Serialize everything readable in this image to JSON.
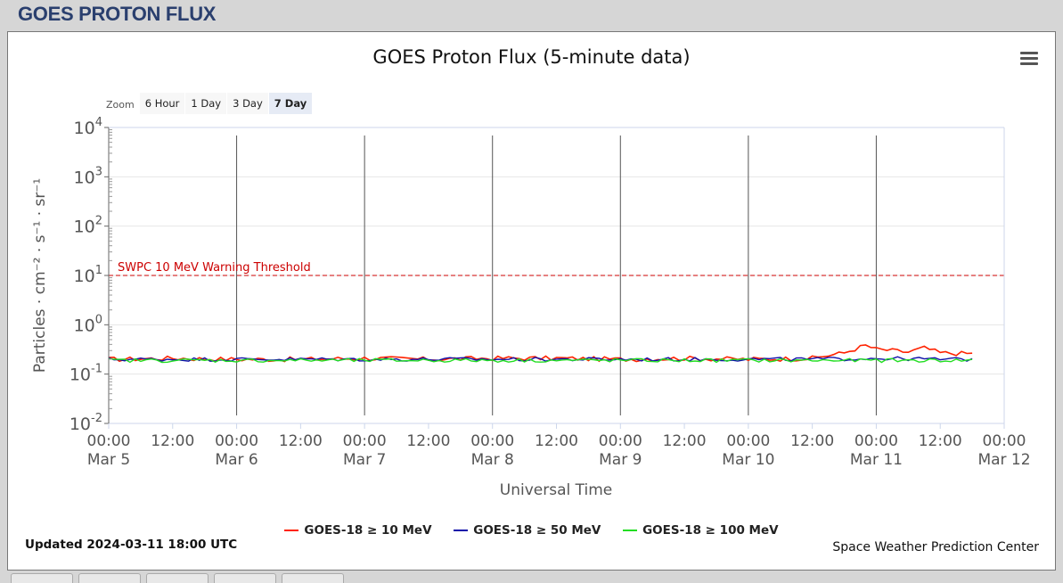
{
  "page": {
    "header": "GOES PROTON FLUX"
  },
  "zoom": {
    "label": "Zoom",
    "buttons": [
      "6 Hour",
      "1 Day",
      "3 Day",
      "7 Day"
    ],
    "selected": "7 Day"
  },
  "footer": {
    "updated": "Updated 2024-03-11 18:00 UTC",
    "credit": "Space Weather Prediction Center"
  },
  "chart_data": {
    "type": "line",
    "title": "GOES Proton Flux (5-minute data)",
    "xlabel": "Universal Time",
    "ylabel": "Particles · cm⁻² · s⁻¹ · sr⁻¹",
    "yscale": "log",
    "ylim": [
      0.01,
      10000
    ],
    "y_ticks": [
      {
        "base": "10",
        "exp": "-2"
      },
      {
        "base": "10",
        "exp": "-1"
      },
      {
        "base": "10",
        "exp": "0"
      },
      {
        "base": "10",
        "exp": "1"
      },
      {
        "base": "10",
        "exp": "2"
      },
      {
        "base": "10",
        "exp": "3"
      },
      {
        "base": "10",
        "exp": "4"
      }
    ],
    "xlim": [
      "2024-03-05 00:00",
      "2024-03-12 00:00"
    ],
    "x_ticks": [
      {
        "time": "00:00",
        "date": "Mar 5"
      },
      {
        "time": "12:00",
        "date": ""
      },
      {
        "time": "00:00",
        "date": "Mar 6"
      },
      {
        "time": "12:00",
        "date": ""
      },
      {
        "time": "00:00",
        "date": "Mar 7"
      },
      {
        "time": "12:00",
        "date": ""
      },
      {
        "time": "00:00",
        "date": "Mar 8"
      },
      {
        "time": "12:00",
        "date": ""
      },
      {
        "time": "00:00",
        "date": "Mar 9"
      },
      {
        "time": "12:00",
        "date": ""
      },
      {
        "time": "00:00",
        "date": "Mar 10"
      },
      {
        "time": "12:00",
        "date": ""
      },
      {
        "time": "00:00",
        "date": "Mar 11"
      },
      {
        "time": "12:00",
        "date": ""
      },
      {
        "time": "00:00",
        "date": "Mar 12"
      }
    ],
    "day_lines": [
      "Mar 6 00:00",
      "Mar 7 00:00",
      "Mar 8 00:00",
      "Mar 9 00:00",
      "Mar 10 00:00",
      "Mar 11 00:00"
    ],
    "threshold": {
      "label": "SWPC 10 MeV Warning Threshold",
      "value": 10,
      "color": "#cc0000"
    },
    "grid": true,
    "legend_position": "bottom",
    "series": [
      {
        "name": "GOES-18 ≥ 10 MeV",
        "color": "#ff2200",
        "x": [
          "2024-03-05 00:00",
          "2024-03-05 12:00",
          "2024-03-06 00:00",
          "2024-03-06 12:00",
          "2024-03-07 00:00",
          "2024-03-07 12:00",
          "2024-03-08 00:00",
          "2024-03-08 12:00",
          "2024-03-09 00:00",
          "2024-03-09 12:00",
          "2024-03-10 00:00",
          "2024-03-10 12:00",
          "2024-03-10 18:00",
          "2024-03-10 22:00",
          "2024-03-11 00:00",
          "2024-03-11 06:00",
          "2024-03-11 09:00",
          "2024-03-11 12:00",
          "2024-03-11 18:00"
        ],
        "y": [
          0.2,
          0.21,
          0.2,
          0.2,
          0.21,
          0.2,
          0.21,
          0.21,
          0.2,
          0.21,
          0.2,
          0.21,
          0.27,
          0.38,
          0.32,
          0.28,
          0.34,
          0.27,
          0.26
        ]
      },
      {
        "name": "GOES-18 ≥ 50 MeV",
        "color": "#1010aa",
        "x": [
          "2024-03-05 00:00",
          "2024-03-05 12:00",
          "2024-03-06 00:00",
          "2024-03-06 12:00",
          "2024-03-07 00:00",
          "2024-03-07 12:00",
          "2024-03-08 00:00",
          "2024-03-08 12:00",
          "2024-03-09 00:00",
          "2024-03-09 12:00",
          "2024-03-10 00:00",
          "2024-03-10 12:00",
          "2024-03-11 00:00",
          "2024-03-11 12:00",
          "2024-03-11 18:00"
        ],
        "y": [
          0.2,
          0.2,
          0.2,
          0.2,
          0.2,
          0.2,
          0.2,
          0.2,
          0.2,
          0.2,
          0.2,
          0.2,
          0.21,
          0.2,
          0.2
        ]
      },
      {
        "name": "GOES-18 ≥ 100 MeV",
        "color": "#22dd22",
        "x": [
          "2024-03-05 00:00",
          "2024-03-05 12:00",
          "2024-03-06 00:00",
          "2024-03-06 12:00",
          "2024-03-07 00:00",
          "2024-03-07 12:00",
          "2024-03-08 00:00",
          "2024-03-08 12:00",
          "2024-03-09 00:00",
          "2024-03-09 12:00",
          "2024-03-10 00:00",
          "2024-03-10 12:00",
          "2024-03-11 00:00",
          "2024-03-11 12:00",
          "2024-03-11 18:00"
        ],
        "y": [
          0.19,
          0.19,
          0.19,
          0.19,
          0.19,
          0.19,
          0.19,
          0.19,
          0.19,
          0.19,
          0.19,
          0.19,
          0.19,
          0.19,
          0.19
        ]
      }
    ]
  }
}
